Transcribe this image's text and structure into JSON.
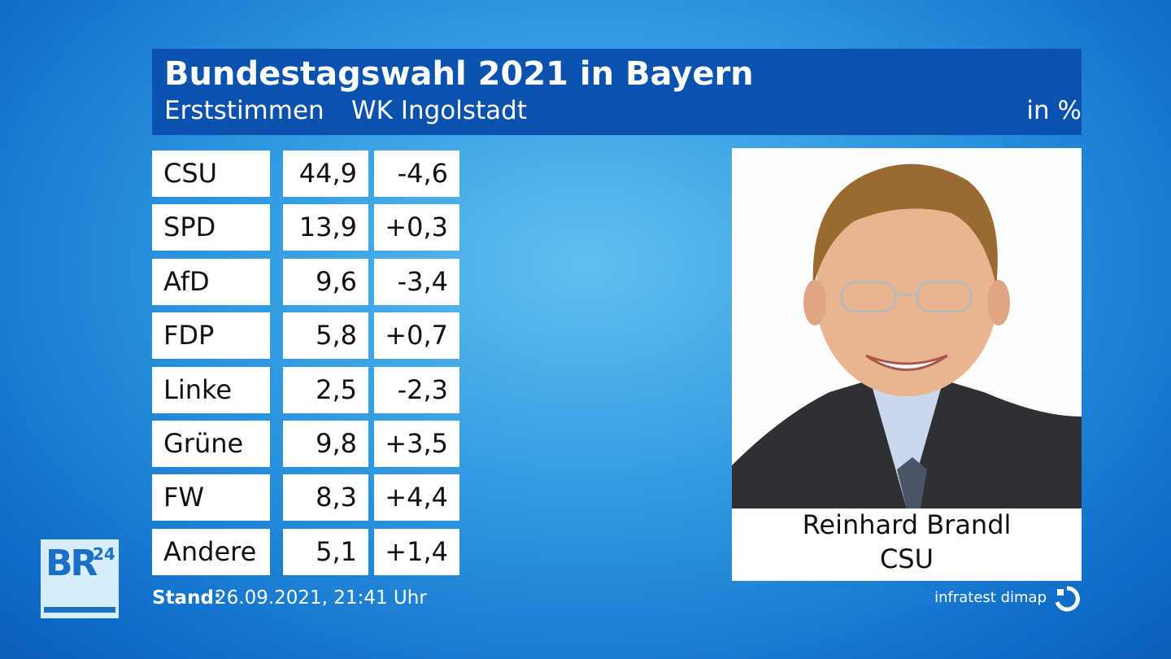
{
  "header": {
    "title": "Bundestagswahl 2021 in Bayern",
    "vote_type": "Erststimmen",
    "district": "WK Ingolstadt",
    "unit": "in %"
  },
  "table": {
    "rows": [
      [
        "CSU",
        "44,9",
        "-4,6"
      ],
      [
        "SPD",
        "13,9",
        "+0,3"
      ],
      [
        "AfD",
        "9,6",
        "-3,4"
      ],
      [
        "FDP",
        "5,8",
        "+0,7"
      ],
      [
        "Linke",
        "2,5",
        "-2,3"
      ],
      [
        "Grüne",
        "9,8",
        "+3,5"
      ],
      [
        "FW",
        "8,3",
        "+4,4"
      ],
      [
        "Andere",
        "5,1",
        "+1,4"
      ]
    ]
  },
  "candidate": {
    "name": "Reinhard Brandl",
    "party": "CSU"
  },
  "footer": {
    "label": "Stand:",
    "date": "26.09.2021, 21:41 Uhr",
    "source": "infratest dimap"
  },
  "logo": {
    "brand": "BR",
    "number": "24"
  }
}
